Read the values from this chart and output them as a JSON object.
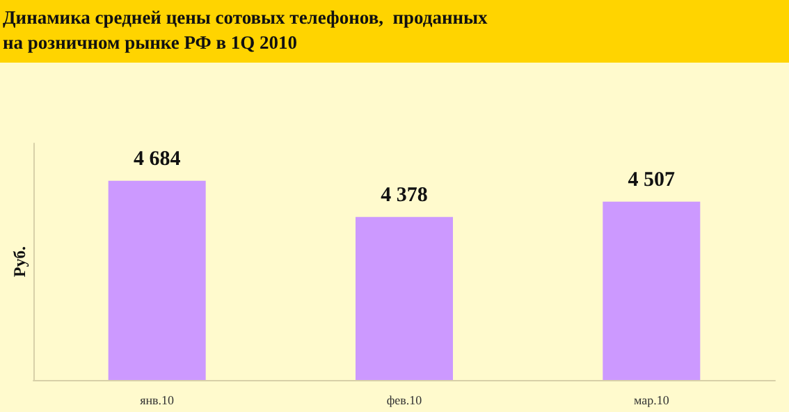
{
  "chart_data": {
    "type": "bar",
    "title": "Динамика средней цены сотовых телефонов,  проданных\nна розничном рынке РФ в 1Q 2010",
    "ylabel": "Руб.",
    "categories": [
      "янв.10",
      "фев.10",
      "мар.10"
    ],
    "values": [
      4684,
      4378,
      4507
    ],
    "value_labels": [
      "4 684",
      "4 378",
      "4 507"
    ],
    "color": "#cc99ff",
    "ylim": [
      3000,
      5000
    ],
    "tick_labels": "x"
  }
}
